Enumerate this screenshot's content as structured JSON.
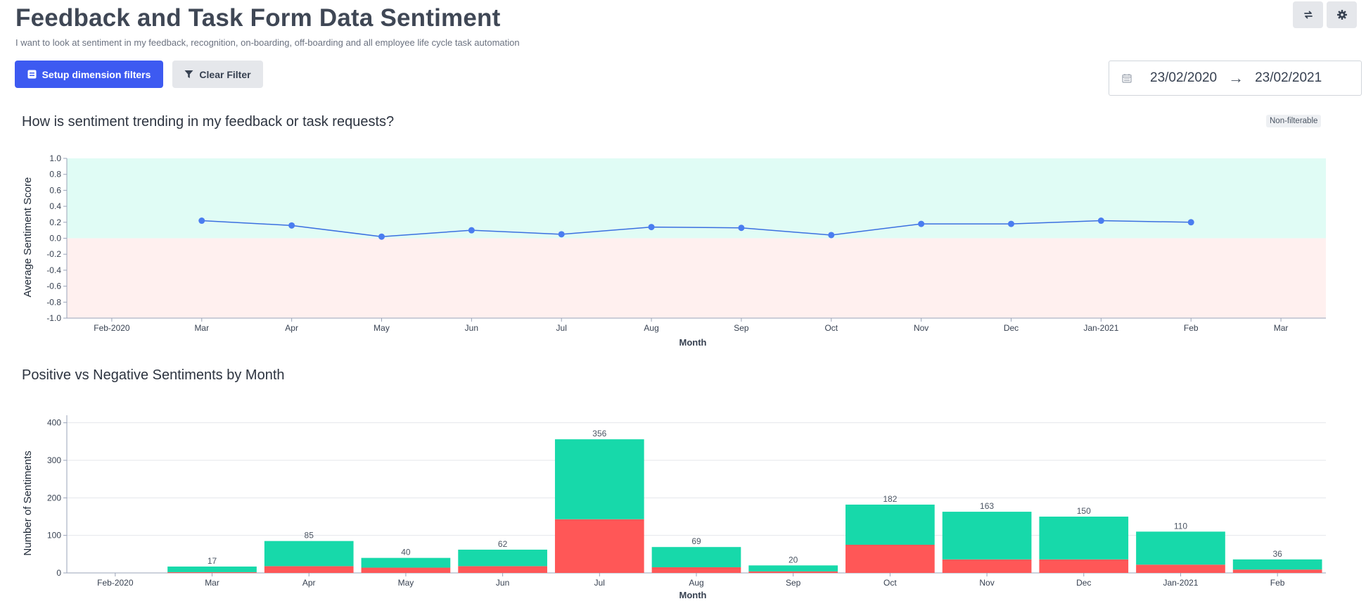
{
  "page": {
    "title": "Feedback and Task Form Data Sentiment",
    "subtitle": "I want to look at sentiment in my feedback, recognition, on-boarding, off-boarding and all employee life cycle task automation"
  },
  "toolbar": {
    "setup_label": "Setup dimension filters",
    "clear_label": "Clear Filter",
    "refresh_icon": "refresh-icon",
    "settings_icon": "gear-icon"
  },
  "date_range": {
    "start": "23/02/2020",
    "end": "23/02/2021",
    "separator": "→"
  },
  "colors": {
    "primary": "#3d5af1",
    "positive": "#17d9aa",
    "negative": "#ff5757",
    "positive_band": "#e0fcf5",
    "negative_band": "#fff0ef",
    "line": "#3b6fe0",
    "point": "#4a7df0"
  },
  "chart_data": [
    {
      "type": "line",
      "title": "How is sentiment trending in my feedback or task requests?",
      "badge": "Non-filterable",
      "xlabel": "Month",
      "ylabel": "Average Sentiment Score",
      "ylim": [
        -1.0,
        1.0
      ],
      "yticks": [
        "1.0",
        "0.8",
        "0.6",
        "0.4",
        "0.2",
        "0.0",
        "-0.2",
        "-0.4",
        "-0.6",
        "-0.8",
        "-1.0"
      ],
      "xticks": [
        "Feb-2020",
        "Mar",
        "Apr",
        "May",
        "Jun",
        "Jul",
        "Aug",
        "Sep",
        "Oct",
        "Nov",
        "Dec",
        "Jan-2021",
        "Feb",
        "Mar"
      ],
      "x": [
        "Mar",
        "Apr",
        "May",
        "Jun",
        "Jul",
        "Aug",
        "Sep",
        "Oct",
        "Nov",
        "Dec",
        "Jan-2021",
        "Feb"
      ],
      "values": [
        0.22,
        0.16,
        0.02,
        0.1,
        0.05,
        0.14,
        0.13,
        0.04,
        0.18,
        0.18,
        0.22,
        0.2
      ]
    },
    {
      "type": "bar",
      "stacked": true,
      "title": "Positive vs Negative Sentiments by Month",
      "xlabel": "Month",
      "ylabel": "Number of Sentiments",
      "ylim": [
        0,
        420
      ],
      "yticks": [
        "400",
        "300",
        "200",
        "100",
        "0"
      ],
      "categories": [
        "Feb-2020",
        "Mar",
        "Apr",
        "May",
        "Jun",
        "Jul",
        "Aug",
        "Sep",
        "Oct",
        "Nov",
        "Dec",
        "Jan-2021",
        "Feb"
      ],
      "totals": [
        "",
        "17",
        "85",
        "40",
        "62",
        "356",
        "69",
        "20",
        "182",
        "163",
        "150",
        "110",
        "36"
      ],
      "series": [
        {
          "name": "Negative",
          "values": [
            0,
            2,
            18,
            14,
            18,
            143,
            15,
            4,
            75,
            36,
            36,
            22,
            9
          ]
        },
        {
          "name": "Positive",
          "values": [
            0,
            15,
            67,
            26,
            44,
            213,
            54,
            16,
            107,
            127,
            114,
            88,
            27
          ]
        }
      ]
    }
  ]
}
